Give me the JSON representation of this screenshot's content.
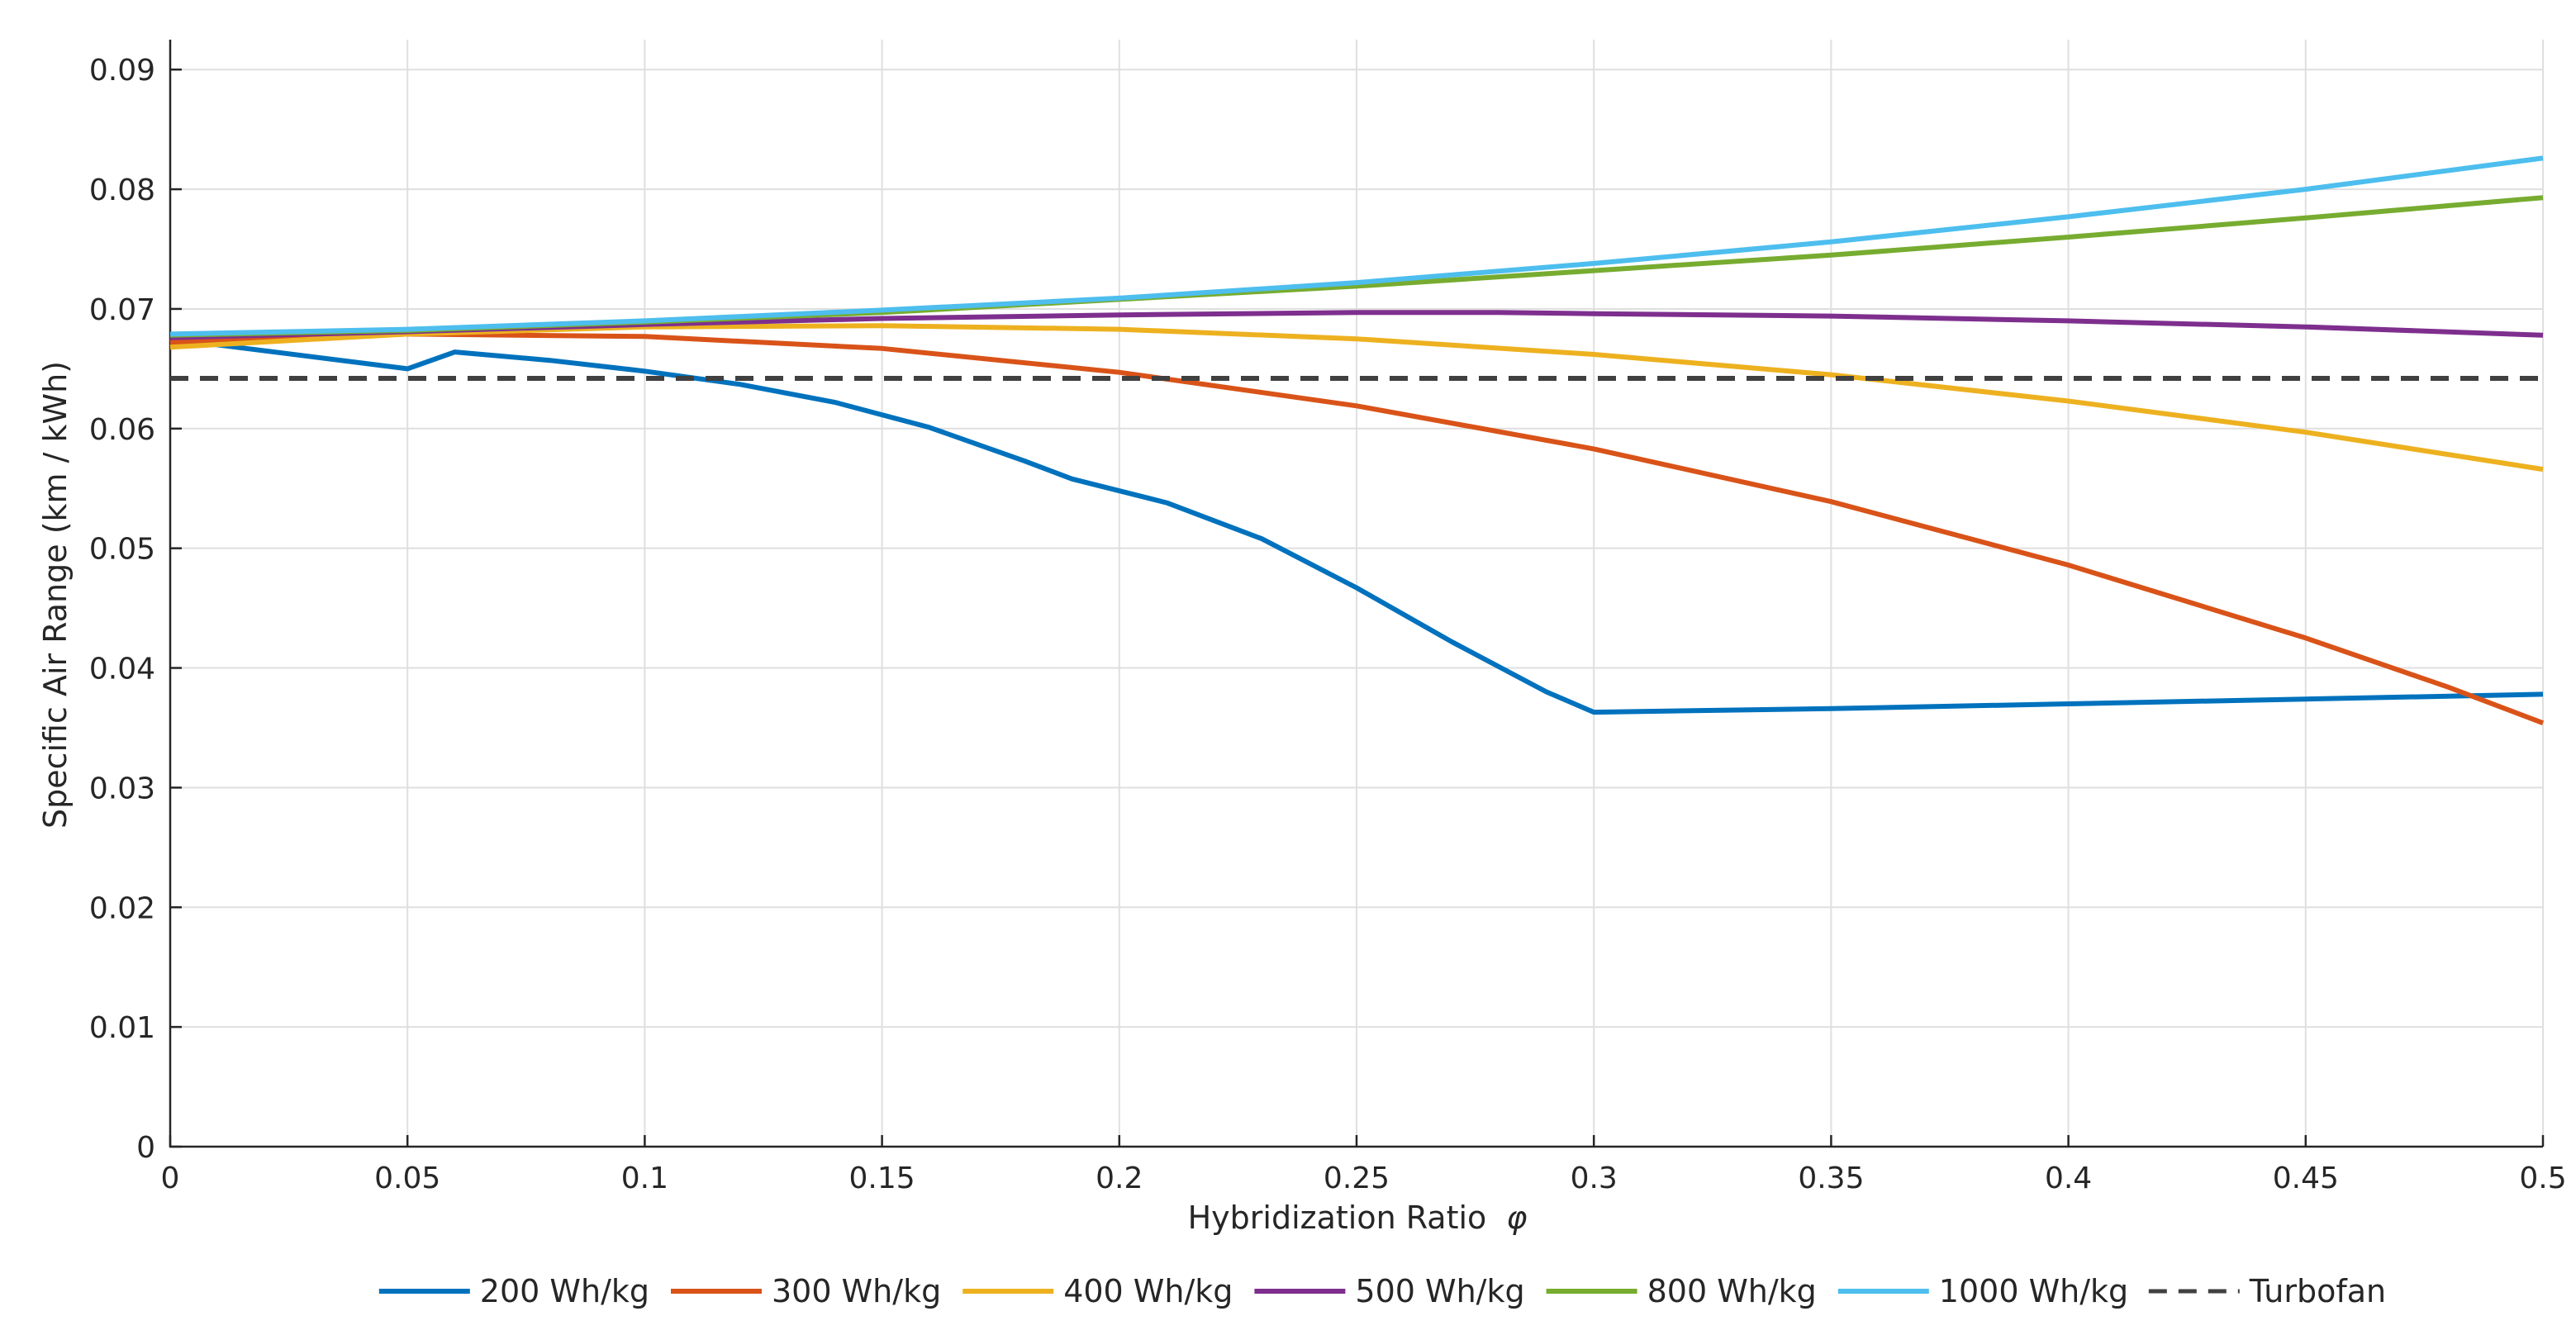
{
  "chart_data": {
    "type": "line",
    "title": "",
    "xlabel": "Hybridization Ratio",
    "xlabel_symbol": "φ",
    "ylabel": "Specific Air Range  (km / kWh)",
    "xlim": [
      0,
      0.5
    ],
    "ylim": [
      0,
      0.0925
    ],
    "x_ticks": [
      0,
      0.05,
      0.1,
      0.15,
      0.2,
      0.25,
      0.3,
      0.35,
      0.4,
      0.45,
      0.5
    ],
    "x_tick_labels": [
      "0",
      "0.05",
      "0.1",
      "0.15",
      "0.2",
      "0.25",
      "0.3",
      "0.35",
      "0.4",
      "0.45",
      "0.5"
    ],
    "y_ticks": [
      0,
      0.01,
      0.02,
      0.03,
      0.04,
      0.05,
      0.06,
      0.07,
      0.08,
      0.09
    ],
    "y_tick_labels": [
      "0",
      "0.01",
      "0.02",
      "0.03",
      "0.04",
      "0.05",
      "0.06",
      "0.07",
      "0.08",
      "0.09"
    ],
    "grid": true,
    "legend_position": "bottom",
    "series": [
      {
        "name": "200 Wh/kg",
        "color": "#0072BD",
        "dash": "solid",
        "x": [
          0,
          0.05,
          0.06,
          0.08,
          0.1,
          0.12,
          0.14,
          0.16,
          0.18,
          0.19,
          0.21,
          0.23,
          0.25,
          0.27,
          0.29,
          0.3,
          0.35,
          0.4,
          0.45,
          0.5
        ],
        "y": [
          0.0675,
          0.065,
          0.0664,
          0.0657,
          0.0648,
          0.0637,
          0.0622,
          0.0601,
          0.0573,
          0.0558,
          0.0538,
          0.0508,
          0.0467,
          0.0422,
          0.038,
          0.0363,
          0.0366,
          0.037,
          0.0374,
          0.0378
        ]
      },
      {
        "name": "300 Wh/kg",
        "color": "#D95319",
        "dash": "solid",
        "x": [
          0,
          0.05,
          0.1,
          0.15,
          0.2,
          0.25,
          0.3,
          0.35,
          0.4,
          0.45,
          0.48,
          0.5
        ],
        "y": [
          0.0672,
          0.0679,
          0.0677,
          0.0667,
          0.0647,
          0.0619,
          0.0583,
          0.0539,
          0.0486,
          0.0425,
          0.0384,
          0.0354
        ]
      },
      {
        "name": "400 Wh/kg",
        "color": "#EDB120",
        "dash": "solid",
        "x": [
          0,
          0.05,
          0.1,
          0.15,
          0.2,
          0.25,
          0.3,
          0.35,
          0.4,
          0.45,
          0.5
        ],
        "y": [
          0.0668,
          0.0679,
          0.0685,
          0.0686,
          0.0683,
          0.0675,
          0.0662,
          0.0645,
          0.0623,
          0.0597,
          0.0566
        ]
      },
      {
        "name": "500 Wh/kg",
        "color": "#7E2F8E",
        "dash": "solid",
        "x": [
          0,
          0.05,
          0.1,
          0.15,
          0.2,
          0.25,
          0.28,
          0.3,
          0.35,
          0.4,
          0.45,
          0.5
        ],
        "y": [
          0.0676,
          0.0681,
          0.0687,
          0.0692,
          0.0695,
          0.0697,
          0.0697,
          0.0696,
          0.0694,
          0.069,
          0.0685,
          0.0678
        ]
      },
      {
        "name": "800 Wh/kg",
        "color": "#77AC30",
        "dash": "solid",
        "x": [
          0,
          0.05,
          0.1,
          0.15,
          0.2,
          0.25,
          0.3,
          0.35,
          0.4,
          0.45,
          0.5
        ],
        "y": [
          0.0678,
          0.0682,
          0.0689,
          0.0697,
          0.0708,
          0.0719,
          0.0732,
          0.0745,
          0.076,
          0.0776,
          0.0793
        ]
      },
      {
        "name": "1000 Wh/kg",
        "color": "#4DBEEE",
        "dash": "solid",
        "x": [
          0,
          0.05,
          0.1,
          0.15,
          0.2,
          0.25,
          0.3,
          0.35,
          0.4,
          0.45,
          0.5
        ],
        "y": [
          0.0679,
          0.0683,
          0.069,
          0.0699,
          0.0709,
          0.0722,
          0.0738,
          0.0756,
          0.0777,
          0.08,
          0.0826
        ]
      },
      {
        "name": "Turbofan",
        "color": "#404040",
        "dash": "dashed",
        "x": [
          0,
          0.5
        ],
        "y": [
          0.0642,
          0.0642
        ]
      }
    ]
  }
}
